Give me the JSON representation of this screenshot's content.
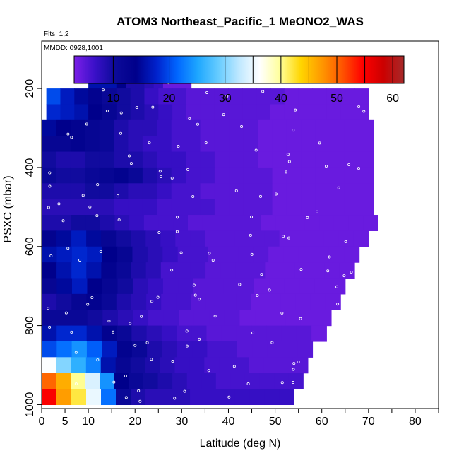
{
  "chart_data": {
    "type": "heatmap",
    "title": "ATOM3 Northeast_Pacific_1 MeONO2_WAS",
    "annotations": [
      "Flts: 1,2",
      "MMDD: 0928,1001"
    ],
    "xlabel": "Latitude (deg N)",
    "ylabel": "PSXC (mbar)",
    "xlim": [
      0,
      85
    ],
    "ylim": [
      1010,
      80
    ],
    "y_reversed": true,
    "x_ticks": [
      0,
      5,
      10,
      20,
      30,
      40,
      50,
      60,
      70,
      80
    ],
    "x_minor_ticks": [
      15,
      25,
      35,
      45,
      55,
      65,
      75,
      85
    ],
    "y_ticks": [
      200,
      400,
      600,
      800,
      1000
    ],
    "colorbar": {
      "min": 3,
      "max": 62,
      "ticks": [
        10,
        20,
        30,
        40,
        50,
        60
      ],
      "colors": [
        "#7b1fe8",
        "#3a10c8",
        "#0c0a99",
        "#00008b",
        "#0022cc",
        "#0066ff",
        "#1ea7ff",
        "#66ccff",
        "#bfe8ff",
        "#ffffff",
        "#ffff99",
        "#ffd500",
        "#ff9900",
        "#ff5500",
        "#ff0000",
        "#cc0000",
        "#a52a2a"
      ]
    },
    "layers": [
      {
        "p": 180,
        "lat_min": 10,
        "lat_max": 32,
        "values": [
          16,
          16,
          16,
          14,
          9,
          9,
          8,
          7,
          4,
          4,
          4
        ]
      },
      {
        "p": 220,
        "lat_min": 1,
        "lat_max": 70,
        "values": [
          20,
          17,
          15,
          13,
          11,
          10,
          9,
          7,
          6,
          6,
          5,
          5,
          5,
          5,
          5,
          5,
          5,
          4,
          4,
          4,
          4,
          4,
          4
        ]
      },
      {
        "p": 260,
        "lat_min": 1,
        "lat_max": 70,
        "values": [
          18,
          17,
          16,
          14,
          12,
          10,
          9,
          8,
          7,
          6,
          5,
          5,
          5,
          5,
          5,
          5,
          4,
          4,
          4,
          4,
          4,
          4,
          4
        ]
      },
      {
        "p": 300,
        "lat_min": 0,
        "lat_max": 71,
        "values": [
          15,
          14,
          13,
          12,
          11,
          9,
          8,
          8,
          7,
          6,
          6,
          5,
          5,
          5,
          5,
          4,
          4,
          4,
          4,
          4,
          4,
          4,
          4
        ]
      },
      {
        "p": 340,
        "lat_min": 0,
        "lat_max": 71,
        "values": [
          12,
          12,
          13,
          12,
          11,
          9,
          8,
          7,
          7,
          6,
          6,
          5,
          5,
          5,
          5,
          4,
          4,
          4,
          4,
          4,
          4,
          4,
          4
        ]
      },
      {
        "p": 380,
        "lat_min": 0,
        "lat_max": 71,
        "values": [
          10,
          9,
          9,
          10,
          10,
          9,
          9,
          8,
          7,
          7,
          6,
          6,
          5,
          5,
          5,
          4,
          4,
          4,
          4,
          4,
          4,
          4,
          4
        ]
      },
      {
        "p": 420,
        "lat_min": 0,
        "lat_max": 71,
        "values": [
          11,
          10,
          10,
          11,
          12,
          13,
          11,
          9,
          8,
          7,
          6,
          6,
          5,
          5,
          5,
          5,
          4,
          4,
          4,
          4,
          4,
          4,
          4
        ]
      },
      {
        "p": 460,
        "lat_min": 0,
        "lat_max": 71,
        "values": [
          9,
          9,
          9,
          10,
          10,
          9,
          8,
          8,
          7,
          6,
          6,
          5,
          5,
          5,
          5,
          5,
          4,
          4,
          4,
          4,
          4,
          4,
          4
        ]
      },
      {
        "p": 500,
        "lat_min": 0,
        "lat_max": 71,
        "values": [
          8,
          8,
          8,
          8,
          8,
          7,
          7,
          7,
          6,
          6,
          6,
          6,
          5,
          5,
          5,
          5,
          4,
          4,
          4,
          4,
          4,
          4,
          4
        ]
      },
      {
        "p": 540,
        "lat_min": 0,
        "lat_max": 72,
        "values": [
          9,
          9,
          10,
          10,
          9,
          8,
          7,
          6,
          6,
          6,
          5,
          5,
          5,
          5,
          5,
          4,
          4,
          4,
          4,
          4,
          4,
          4,
          4
        ]
      },
      {
        "p": 580,
        "lat_min": 0,
        "lat_max": 70,
        "values": [
          13,
          15,
          17,
          15,
          12,
          10,
          9,
          8,
          7,
          6,
          6,
          5,
          5,
          5,
          5,
          5,
          4,
          4,
          4,
          4,
          4,
          4
        ]
      },
      {
        "p": 620,
        "lat_min": 0,
        "lat_max": 68,
        "values": [
          16,
          17,
          18,
          17,
          14,
          12,
          9,
          8,
          7,
          6,
          6,
          5,
          5,
          5,
          5,
          4,
          4,
          4,
          4,
          4,
          4
        ]
      },
      {
        "p": 660,
        "lat_min": 0,
        "lat_max": 67,
        "values": [
          14,
          16,
          18,
          16,
          13,
          11,
          9,
          8,
          6,
          6,
          6,
          5,
          5,
          5,
          5,
          4,
          4,
          4,
          4,
          4,
          4
        ]
      },
      {
        "p": 700,
        "lat_min": 0,
        "lat_max": 65,
        "values": [
          12,
          15,
          17,
          14,
          12,
          10,
          8,
          7,
          6,
          6,
          5,
          5,
          5,
          5,
          4,
          4,
          4,
          4,
          4,
          4
        ]
      },
      {
        "p": 740,
        "lat_min": 0,
        "lat_max": 64,
        "values": [
          9,
          10,
          12,
          13,
          11,
          9,
          8,
          7,
          6,
          6,
          5,
          5,
          5,
          5,
          4,
          4,
          4,
          4,
          4,
          4
        ]
      },
      {
        "p": 780,
        "lat_min": 0,
        "lat_max": 62,
        "values": [
          11,
          11,
          11,
          10,
          9,
          8,
          7,
          6,
          6,
          5,
          5,
          5,
          5,
          4,
          4,
          4,
          4,
          4,
          4
        ]
      },
      {
        "p": 820,
        "lat_min": 0,
        "lat_max": 61,
        "values": [
          16,
          18,
          18,
          16,
          13,
          11,
          9,
          8,
          7,
          6,
          6,
          5,
          5,
          5,
          5,
          5,
          5,
          5,
          4
        ]
      },
      {
        "p": 860,
        "lat_min": 0,
        "lat_max": 58,
        "values": [
          20,
          22,
          24,
          21,
          17,
          13,
          11,
          9,
          8,
          7,
          7,
          6,
          6,
          5,
          5,
          5,
          5,
          5
        ]
      },
      {
        "p": 900,
        "lat_min": 0,
        "lat_max": 57,
        "values": [
          36,
          30,
          26,
          23,
          16,
          12,
          10,
          9,
          8,
          7,
          7,
          6,
          6,
          6,
          5,
          5,
          5,
          5
        ]
      },
      {
        "p": 940,
        "lat_min": 0,
        "lat_max": 56,
        "values": [
          50,
          46,
          40,
          34,
          24,
          14,
          11,
          10,
          9,
          8,
          7,
          7,
          6,
          6,
          6,
          6,
          6,
          6
        ]
      },
      {
        "p": 980,
        "lat_min": 0,
        "lat_max": 54,
        "values": [
          55,
          47,
          42,
          35,
          22,
          11,
          9,
          8,
          8,
          8,
          7,
          7,
          7,
          7,
          7,
          7,
          7
        ]
      }
    ]
  }
}
